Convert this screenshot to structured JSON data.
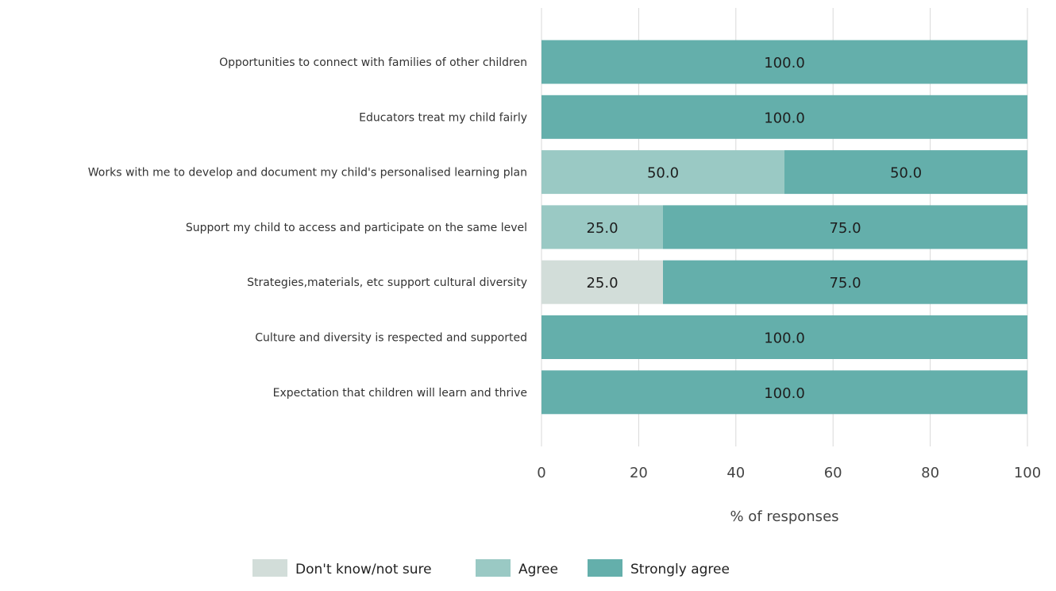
{
  "chart_data": {
    "type": "bar",
    "orientation": "horizontal",
    "stacked": true,
    "title": "",
    "xlabel": "% of responses",
    "ylabel": "",
    "xlim": [
      0,
      100
    ],
    "xticks": [
      0,
      20,
      40,
      60,
      80,
      100
    ],
    "grid": "vertical",
    "legend_position": "bottom",
    "categories": [
      "Opportunities to connect with families of other children",
      "Educators treat my child fairly",
      "Works with me to develop and document my child's personalised learning plan",
      "Support my child to access and participate on the same level",
      "Strategies,materials, etc support cultural diversity",
      "Culture and diversity is respected and supported",
      "Expectation that children will learn and thrive"
    ],
    "series": [
      {
        "name": "Don't know/not sure",
        "color": "#d2ddd9",
        "values": [
          0,
          0,
          0,
          0,
          25.0,
          0,
          0
        ]
      },
      {
        "name": "Agree",
        "color": "#9ac9c4",
        "values": [
          0,
          0,
          50.0,
          25.0,
          0,
          0,
          0
        ]
      },
      {
        "name": "Strongly agree",
        "color": "#64afab",
        "values": [
          100.0,
          100.0,
          50.0,
          75.0,
          75.0,
          100.0,
          100.0
        ]
      }
    ]
  }
}
